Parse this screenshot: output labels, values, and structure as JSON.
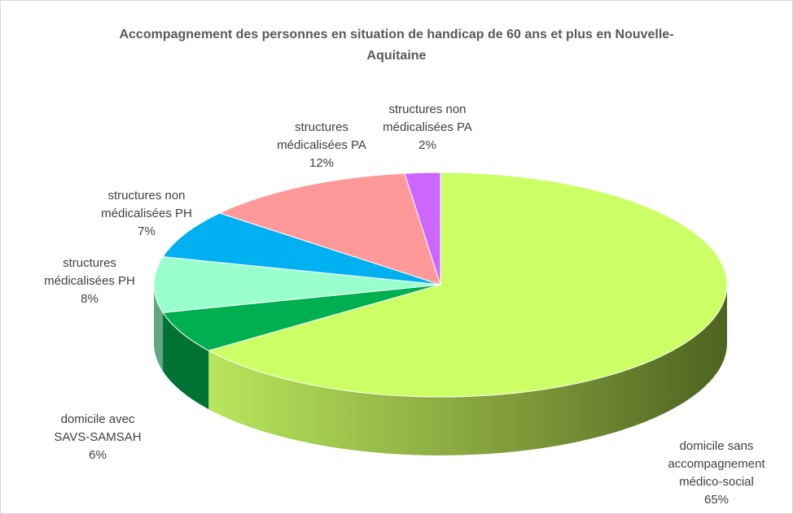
{
  "chart_data": {
    "type": "pie3d",
    "title": "Accompagnement des personnes en situation de handicap de 60 ans et plus en Nouvelle-Aquitaine",
    "categories": [
      "domicile sans accompagnement médico-social",
      "domicile avec SAVS-SAMSAH",
      "structures médicalisées PH",
      "structures non médicalisées PH",
      "structures médicalisées PA",
      "structures non médicalisées PA"
    ],
    "values": [
      65,
      6,
      8,
      7,
      12,
      2
    ],
    "value_labels": [
      "65%",
      "6%",
      "8%",
      "7%",
      "12%",
      "2%"
    ],
    "colors": [
      "#ccff66",
      "#00b050",
      "#99ffcc",
      "#00b0f0",
      "#ff9999",
      "#cc66ff"
    ]
  }
}
